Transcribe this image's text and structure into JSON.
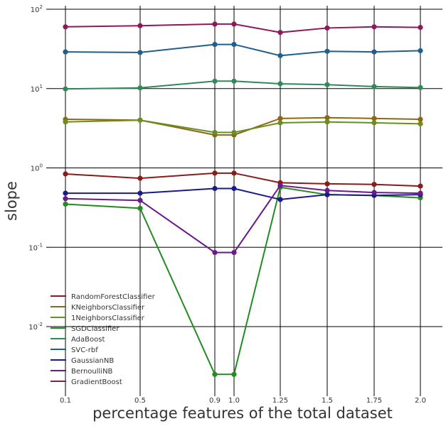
{
  "chart_data": {
    "type": "line",
    "title": "",
    "xlabel": "percentage features of the total dataset",
    "ylabel": "slope",
    "yscale": "log",
    "ylim": [
      0.0015,
      100
    ],
    "x": [
      0.1,
      0.5,
      0.9,
      1.0,
      1.25,
      1.5,
      1.75,
      2.0
    ],
    "x_tick_labels": [
      "0.1",
      "0.5",
      "0.9",
      "1.0",
      "1.25",
      "1.5",
      "1.75",
      "2.0"
    ],
    "y_ticks": [
      0.01,
      0.1,
      1,
      10,
      100
    ],
    "y_tick_labels": [
      {
        "base": "10",
        "exp": "-2"
      },
      {
        "base": "10",
        "exp": "-1"
      },
      {
        "base": "10",
        "exp": "0"
      },
      {
        "base": "10",
        "exp": "1"
      },
      {
        "base": "10",
        "exp": "2"
      }
    ],
    "grid": true,
    "legend_position": "lower-left",
    "series": [
      {
        "name": "RandomForestClassifier",
        "color": "#8b1a1a",
        "values": [
          0.84,
          0.74,
          0.86,
          0.86,
          0.65,
          0.63,
          0.62,
          0.59
        ]
      },
      {
        "name": "KNeighborsClassifier",
        "color": "#8b6914",
        "values": [
          4.1,
          4.0,
          2.6,
          2.6,
          4.2,
          4.3,
          4.2,
          4.1
        ]
      },
      {
        "name": "1NeighborsClassifier",
        "color": "#6b8e23",
        "values": [
          3.8,
          4.0,
          2.8,
          2.8,
          3.7,
          3.8,
          3.7,
          3.6
        ]
      },
      {
        "name": "SGDClassifier",
        "color": "#228b22",
        "values": [
          0.35,
          0.31,
          0.0025,
          0.0025,
          0.57,
          0.46,
          0.45,
          0.42
        ]
      },
      {
        "name": "AdaBoost",
        "color": "#2e8b57",
        "values": [
          9.9,
          10.2,
          12.4,
          12.4,
          11.5,
          11.2,
          10.6,
          10.3
        ]
      },
      {
        "name": "SVC-rbf",
        "color": "#1f5f8b",
        "values": [
          29.0,
          28.5,
          36.0,
          36.0,
          26.0,
          29.5,
          29.0,
          30.0
        ]
      },
      {
        "name": "GaussianNB",
        "color": "#1a1a8b",
        "values": [
          0.48,
          0.48,
          0.55,
          0.55,
          0.4,
          0.46,
          0.45,
          0.46
        ]
      },
      {
        "name": "BernoulliNB",
        "color": "#6a1a8b",
        "values": [
          0.41,
          0.39,
          0.086,
          0.086,
          0.6,
          0.52,
          0.49,
          0.48
        ]
      },
      {
        "name": "GradientBoost",
        "color": "#8b1a5a",
        "values": [
          60,
          62,
          65,
          65,
          51,
          58,
          60,
          59
        ]
      }
    ]
  }
}
